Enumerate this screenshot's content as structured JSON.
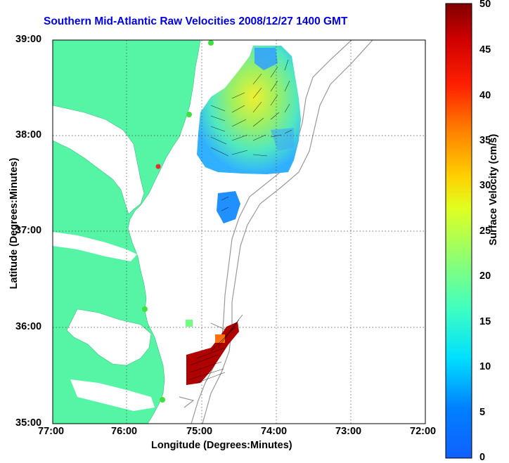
{
  "map": {
    "title": "Southern Mid-Atlantic Raw Velocities 2008/12/27 1400 GMT",
    "xlabel": "Longitude (Degrees:Minutes)",
    "ylabel": "Latitude (Degrees:Minutes)",
    "x_ticks": [
      "77:00",
      "76:00",
      "75:00",
      "74:00",
      "73:00",
      "72:00"
    ],
    "y_ticks": [
      "39:00",
      "38:00",
      "37:00",
      "36:00",
      "35:00"
    ],
    "colorbar": {
      "label": "Surface Velocity (cm/s)",
      "ticks": [
        "50",
        "45",
        "40",
        "35",
        "30",
        "25",
        "20",
        "15",
        "10",
        "5",
        "0"
      ]
    },
    "colors": {
      "land": "#55f5a5",
      "title": "#0000ee"
    }
  }
}
